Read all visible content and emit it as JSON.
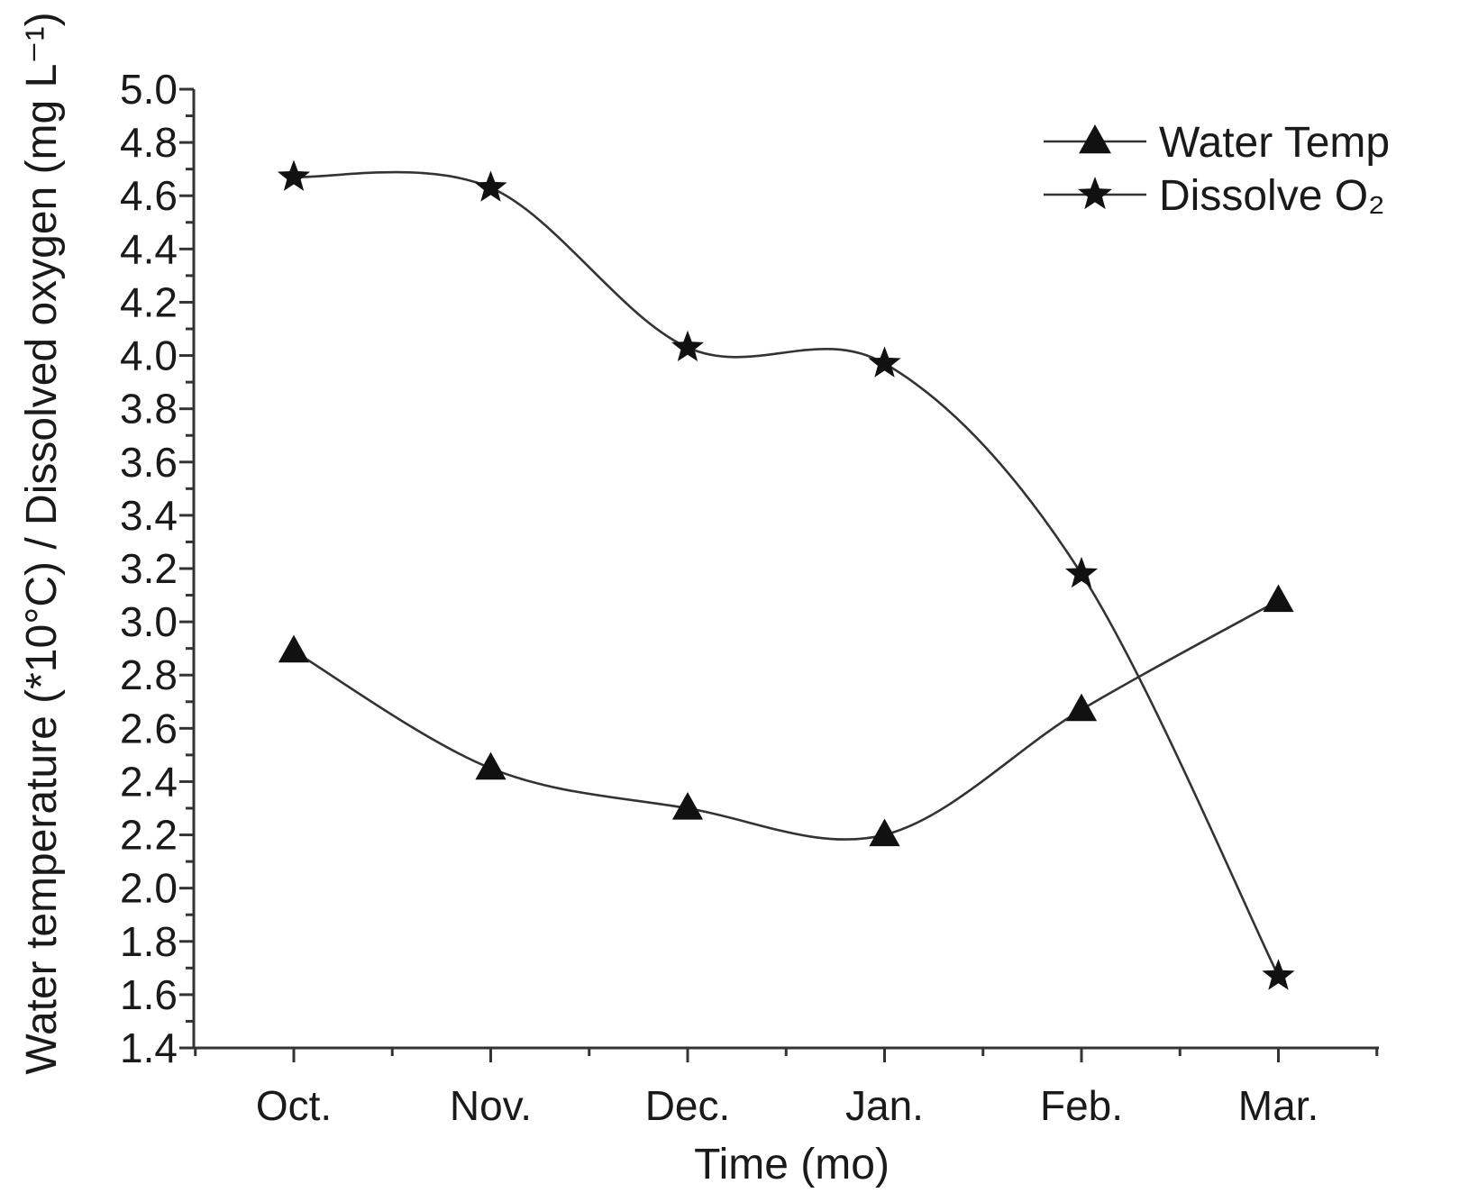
{
  "chart_data": {
    "type": "line",
    "categories": [
      "Oct.",
      "Nov.",
      "Dec.",
      "Jan.",
      "Feb.",
      "Mar."
    ],
    "series": [
      {
        "name": "Water Temp",
        "marker": "triangle",
        "values": [
          2.89,
          2.45,
          2.3,
          2.2,
          2.67,
          3.08
        ]
      },
      {
        "name": "Dissolve O₂",
        "marker": "star",
        "values": [
          4.67,
          4.63,
          4.03,
          3.97,
          3.18,
          1.67
        ]
      }
    ],
    "xlabel": "Time (mo)",
    "ylabel": "Water temperature (*10°C) / Dissolved oxygen (mg L⁻¹)",
    "ylim": [
      1.4,
      5.0
    ],
    "yticks": [
      "1.4",
      "1.6",
      "1.8",
      "2.0",
      "2.2",
      "2.4",
      "2.6",
      "2.8",
      "3.0",
      "3.2",
      "3.4",
      "3.6",
      "3.8",
      "4.0",
      "4.2",
      "4.4",
      "4.6",
      "4.8",
      "5.0"
    ],
    "grid": false,
    "legend_position": "top-right",
    "line_color": "#333333",
    "marker_color": "#111111"
  }
}
